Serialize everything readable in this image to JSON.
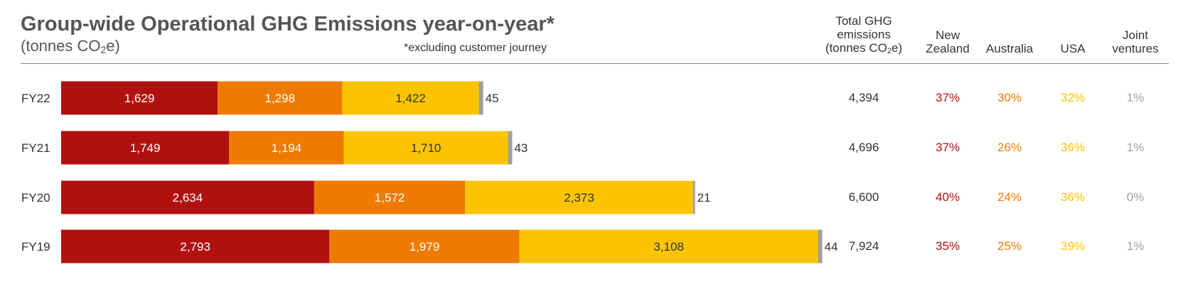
{
  "header": {
    "title": "Group-wide Operational GHG Emissions year-on-year*",
    "subtitle_pre": "(tonnes CO",
    "subtitle_sub": "2",
    "subtitle_post": "e)",
    "note": "*excluding customer journey"
  },
  "columns": {
    "total": {
      "line1": "Total GHG",
      "line2": "emissions",
      "line3_pre": "(tonnes CO",
      "line3_sub": "2",
      "line3_post": "e)"
    },
    "nz": {
      "line1": "New",
      "line2": "Zealand"
    },
    "au": {
      "line1": "Australia"
    },
    "usa": {
      "line1": "USA"
    },
    "jv": {
      "line1": "Joint",
      "line2": "ventures"
    }
  },
  "colors": {
    "nz": "#B0100E",
    "au": "#EE7B00",
    "usa": "#FCC400",
    "jv": "#9E9E9E"
  },
  "chart_data": {
    "type": "bar",
    "orientation": "horizontal",
    "stacked": true,
    "categories": [
      "FY22",
      "FY21",
      "FY20",
      "FY19"
    ],
    "series": [
      {
        "key": "nz",
        "values": [
          1629,
          1749,
          2634,
          2793
        ],
        "labels": [
          "1,629",
          "1,749",
          "2,634",
          "2,793"
        ]
      },
      {
        "key": "au",
        "values": [
          1298,
          1194,
          1572,
          1979
        ],
        "labels": [
          "1,298",
          "1,194",
          "1,572",
          "1,979"
        ]
      },
      {
        "key": "usa",
        "values": [
          1422,
          1710,
          2373,
          3108
        ],
        "labels": [
          "1,422",
          "1,710",
          "2,373",
          "3,108"
        ]
      },
      {
        "key": "jv",
        "values": [
          45,
          43,
          21,
          44
        ],
        "labels": [
          "45",
          "43",
          "21",
          "44"
        ]
      }
    ]
  },
  "table": {
    "rows": [
      {
        "total": "4,394",
        "nz": "37%",
        "au": "30%",
        "usa": "32%",
        "jv": "1%"
      },
      {
        "total": "4,696",
        "nz": "37%",
        "au": "26%",
        "usa": "36%",
        "jv": "1%"
      },
      {
        "total": "6,600",
        "nz": "40%",
        "au": "24%",
        "usa": "36%",
        "jv": "0%"
      },
      {
        "total": "7,924",
        "nz": "35%",
        "au": "25%",
        "usa": "39%",
        "jv": "1%"
      }
    ],
    "pct_colors": {
      "nz": "#B0100E",
      "au": "#EE7B00",
      "usa": "#FCC400",
      "jv": "#A0A0A0"
    }
  }
}
